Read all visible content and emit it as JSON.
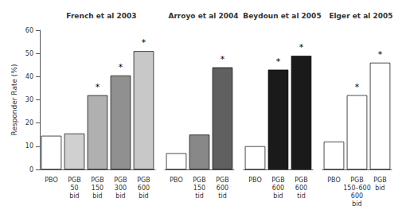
{
  "chart_data": {
    "type": "bar",
    "ylabel": "Responder Rate (%)",
    "ylim": [
      0,
      60
    ],
    "yticks": [
      0,
      10,
      20,
      30,
      40,
      50,
      60
    ],
    "grid": false,
    "groups": [
      {
        "title": "French et al 2003",
        "categories": [
          "PBO",
          "PGB\n50\nbid",
          "PGB\n150\nbid",
          "PGB\n300\nbid",
          "PGB\n600\nbid"
        ],
        "values": [
          14.5,
          15.5,
          32.0,
          40.5,
          51.0
        ],
        "colors": [
          "white",
          "#d0d0d0",
          "#b0b0b0",
          "#909090",
          "#c8c8c8"
        ],
        "annotations": [
          null,
          null,
          "*",
          "*",
          "*"
        ]
      },
      {
        "title": "Arroyo et al 2004",
        "categories": [
          "PBO",
          "PGB\n150\ntid",
          "PGB\n600\ntid"
        ],
        "values": [
          7.0,
          15.0,
          44.0
        ],
        "colors": [
          "white",
          "#888888",
          "#606060"
        ],
        "annotations": [
          null,
          null,
          "*"
        ]
      },
      {
        "title": "Beydoun et al 2005",
        "categories": [
          "PBO",
          "PGB\n600\nbid",
          "PGB\n600\ntid"
        ],
        "values": [
          10.0,
          43.0,
          49.0
        ],
        "colors": [
          "white",
          "#1a1a1a",
          "#1a1a1a"
        ],
        "annotations": [
          null,
          "*",
          "*"
        ]
      },
      {
        "title": "Elger et al 2005",
        "categories": [
          "PBO",
          "PGB\n150–600\n600\nbid",
          "PGB\nbid"
        ],
        "values": [
          12.0,
          32.0,
          46.0
        ],
        "colors": [
          "white",
          "white",
          "white"
        ],
        "annotations": [
          null,
          "*",
          "*"
        ]
      }
    ]
  }
}
